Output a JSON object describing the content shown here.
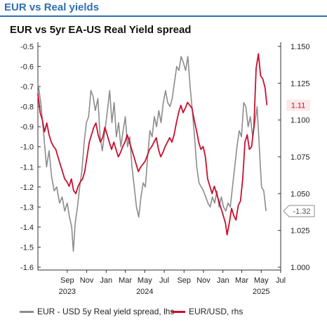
{
  "header": {
    "title": "EUR vs Real yields"
  },
  "chart_data": {
    "type": "line",
    "title": "EUR vs 5yr EA-US Real Yield spread",
    "x_range": [
      "2023-06",
      "2025-07"
    ],
    "x_ticks": [
      {
        "label": "Sep",
        "date": "2023-09"
      },
      {
        "label": "Nov",
        "date": "2023-11"
      },
      {
        "label": "Jan",
        "date": "2024-01"
      },
      {
        "label": "Mar",
        "date": "2024-03"
      },
      {
        "label": "May",
        "date": "2024-05"
      },
      {
        "label": "Jul",
        "date": "2024-07"
      },
      {
        "label": "Sep",
        "date": "2024-09"
      },
      {
        "label": "Nov",
        "date": "2024-11"
      },
      {
        "label": "Jan",
        "date": "2025-01"
      },
      {
        "label": "Mar",
        "date": "2025-03"
      },
      {
        "label": "May",
        "date": "2025-05"
      },
      {
        "label": "Jul",
        "date": "2025-07"
      }
    ],
    "year_labels": [
      {
        "label": "2023",
        "date": "2023-09"
      },
      {
        "label": "2024",
        "date": "2024-05"
      },
      {
        "label": "2025",
        "date": "2025-05"
      }
    ],
    "y_left": {
      "min": -1.6,
      "max": -0.5,
      "ticks": [
        "-0.5",
        "-0.6",
        "-0.7",
        "-0.8",
        "-0.9",
        "-1.0",
        "-1.1",
        "-1.2",
        "-1.3",
        "-1.4",
        "-1.5",
        "-1.6"
      ]
    },
    "y_right": {
      "min": 1.0,
      "max": 1.15,
      "ticks": [
        "1.150",
        "1.125",
        "1.100",
        "1.075",
        "1.050",
        "1.025",
        "1.000"
      ]
    },
    "series": [
      {
        "name": "EUR - USD 5y Real yield spread, lhs",
        "axis": "left",
        "color": "#8c8c8c",
        "points": [
          [
            "2023-06-01",
            -0.68
          ],
          [
            "2023-06-10",
            -0.78
          ],
          [
            "2023-06-20",
            -0.95
          ],
          [
            "2023-06-28",
            -1.1
          ],
          [
            "2023-07-06",
            -1.02
          ],
          [
            "2023-07-14",
            -1.15
          ],
          [
            "2023-07-22",
            -1.22
          ],
          [
            "2023-07-30",
            -1.2
          ],
          [
            "2023-08-08",
            -1.28
          ],
          [
            "2023-08-16",
            -1.25
          ],
          [
            "2023-08-24",
            -1.32
          ],
          [
            "2023-09-01",
            -1.28
          ],
          [
            "2023-09-08",
            -1.35
          ],
          [
            "2023-09-15",
            -1.4
          ],
          [
            "2023-09-20",
            -1.52
          ],
          [
            "2023-09-26",
            -1.38
          ],
          [
            "2023-10-03",
            -1.3
          ],
          [
            "2023-10-10",
            -1.2
          ],
          [
            "2023-10-17",
            -1.12
          ],
          [
            "2023-10-24",
            -0.98
          ],
          [
            "2023-10-31",
            -0.88
          ],
          [
            "2023-11-07",
            -0.85
          ],
          [
            "2023-11-14",
            -0.72
          ],
          [
            "2023-11-21",
            -0.75
          ],
          [
            "2023-11-28",
            -0.82
          ],
          [
            "2023-12-06",
            -0.76
          ],
          [
            "2023-12-13",
            -0.95
          ],
          [
            "2023-12-20",
            -1.02
          ],
          [
            "2023-12-28",
            -0.92
          ],
          [
            "2024-01-05",
            -0.82
          ],
          [
            "2024-01-12",
            -0.72
          ],
          [
            "2024-01-19",
            -0.88
          ],
          [
            "2024-01-26",
            -0.78
          ],
          [
            "2024-02-02",
            -0.95
          ],
          [
            "2024-02-09",
            -0.88
          ],
          [
            "2024-02-16",
            -1.0
          ],
          [
            "2024-02-23",
            -0.92
          ],
          [
            "2024-03-01",
            -0.85
          ],
          [
            "2024-03-08",
            -1.0
          ],
          [
            "2024-03-15",
            -0.95
          ],
          [
            "2024-03-22",
            -1.1
          ],
          [
            "2024-03-29",
            -1.2
          ],
          [
            "2024-04-05",
            -1.3
          ],
          [
            "2024-04-12",
            -1.35
          ],
          [
            "2024-04-19",
            -1.25
          ],
          [
            "2024-04-26",
            -1.18
          ],
          [
            "2024-05-03",
            -1.2
          ],
          [
            "2024-05-10",
            -1.05
          ],
          [
            "2024-05-17",
            -0.92
          ],
          [
            "2024-05-24",
            -0.95
          ],
          [
            "2024-05-31",
            -0.85
          ],
          [
            "2024-06-07",
            -0.9
          ],
          [
            "2024-06-14",
            -0.82
          ],
          [
            "2024-06-21",
            -0.88
          ],
          [
            "2024-06-28",
            -0.78
          ],
          [
            "2024-07-05",
            -0.72
          ],
          [
            "2024-07-12",
            -0.78
          ],
          [
            "2024-07-19",
            -0.8
          ],
          [
            "2024-07-26",
            -0.76
          ],
          [
            "2024-08-02",
            -0.68
          ],
          [
            "2024-08-09",
            -0.6
          ],
          [
            "2024-08-16",
            -0.62
          ],
          [
            "2024-08-23",
            -0.55
          ],
          [
            "2024-08-30",
            -0.58
          ],
          [
            "2024-09-06",
            -0.62
          ],
          [
            "2024-09-13",
            -0.55
          ],
          [
            "2024-09-20",
            -0.7
          ],
          [
            "2024-09-27",
            -0.82
          ],
          [
            "2024-10-04",
            -0.95
          ],
          [
            "2024-10-11",
            -1.1
          ],
          [
            "2024-10-18",
            -1.18
          ],
          [
            "2024-10-25",
            -1.2
          ],
          [
            "2024-11-01",
            -1.22
          ],
          [
            "2024-11-08",
            -1.25
          ],
          [
            "2024-11-15",
            -1.28
          ],
          [
            "2024-11-22",
            -1.3
          ],
          [
            "2024-11-29",
            -1.25
          ],
          [
            "2024-12-06",
            -1.28
          ],
          [
            "2024-12-13",
            -1.22
          ],
          [
            "2024-12-20",
            -1.3
          ],
          [
            "2024-12-27",
            -1.25
          ],
          [
            "2025-01-03",
            -1.3
          ],
          [
            "2025-01-10",
            -1.32
          ],
          [
            "2025-01-17",
            -1.28
          ],
          [
            "2025-01-24",
            -1.3
          ],
          [
            "2025-01-31",
            -1.2
          ],
          [
            "2025-02-07",
            -1.1
          ],
          [
            "2025-02-14",
            -1.0
          ],
          [
            "2025-02-21",
            -0.92
          ],
          [
            "2025-02-28",
            -0.95
          ],
          [
            "2025-03-07",
            -0.78
          ],
          [
            "2025-03-14",
            -0.8
          ],
          [
            "2025-03-21",
            -0.9
          ],
          [
            "2025-03-28",
            -0.85
          ],
          [
            "2025-04-04",
            -0.95
          ],
          [
            "2025-04-11",
            -0.88
          ],
          [
            "2025-04-18",
            -0.8
          ],
          [
            "2025-04-25",
            -1.0
          ],
          [
            "2025-05-02",
            -1.2
          ],
          [
            "2025-05-09",
            -1.22
          ],
          [
            "2025-05-16",
            -1.32
          ]
        ]
      },
      {
        "name": "EUR/USD, rhs",
        "axis": "right",
        "color": "#c8102e",
        "points": [
          [
            "2023-06-01",
            1.118
          ],
          [
            "2023-06-08",
            1.105
          ],
          [
            "2023-06-15",
            1.1
          ],
          [
            "2023-06-22",
            1.092
          ],
          [
            "2023-06-29",
            1.098
          ],
          [
            "2023-07-06",
            1.09
          ],
          [
            "2023-07-13",
            1.085
          ],
          [
            "2023-07-20",
            1.082
          ],
          [
            "2023-07-27",
            1.08
          ],
          [
            "2023-08-03",
            1.075
          ],
          [
            "2023-08-10",
            1.07
          ],
          [
            "2023-08-17",
            1.065
          ],
          [
            "2023-08-24",
            1.06
          ],
          [
            "2023-08-31",
            1.058
          ],
          [
            "2023-09-07",
            1.055
          ],
          [
            "2023-09-14",
            1.06
          ],
          [
            "2023-09-21",
            1.052
          ],
          [
            "2023-09-28",
            1.05
          ],
          [
            "2023-10-05",
            1.055
          ],
          [
            "2023-10-12",
            1.058
          ],
          [
            "2023-10-19",
            1.06
          ],
          [
            "2023-10-26",
            1.065
          ],
          [
            "2023-11-02",
            1.075
          ],
          [
            "2023-11-09",
            1.085
          ],
          [
            "2023-11-16",
            1.09
          ],
          [
            "2023-11-23",
            1.095
          ],
          [
            "2023-11-30",
            1.098
          ],
          [
            "2023-12-07",
            1.09
          ],
          [
            "2023-12-14",
            1.085
          ],
          [
            "2023-12-21",
            1.088
          ],
          [
            "2023-12-28",
            1.095
          ],
          [
            "2024-01-04",
            1.09
          ],
          [
            "2024-01-11",
            1.085
          ],
          [
            "2024-01-18",
            1.08
          ],
          [
            "2024-01-25",
            1.085
          ],
          [
            "2024-02-01",
            1.08
          ],
          [
            "2024-02-08",
            1.075
          ],
          [
            "2024-02-15",
            1.078
          ],
          [
            "2024-02-22",
            1.082
          ],
          [
            "2024-02-29",
            1.085
          ],
          [
            "2024-03-07",
            1.09
          ],
          [
            "2024-03-14",
            1.085
          ],
          [
            "2024-03-21",
            1.08
          ],
          [
            "2024-03-28",
            1.075
          ],
          [
            "2024-04-04",
            1.07
          ],
          [
            "2024-04-11",
            1.065
          ],
          [
            "2024-04-18",
            1.068
          ],
          [
            "2024-04-25",
            1.07
          ],
          [
            "2024-05-02",
            1.072
          ],
          [
            "2024-05-09",
            1.076
          ],
          [
            "2024-05-16",
            1.08
          ],
          [
            "2024-05-23",
            1.082
          ],
          [
            "2024-05-30",
            1.085
          ],
          [
            "2024-06-06",
            1.088
          ],
          [
            "2024-06-13",
            1.08
          ],
          [
            "2024-06-20",
            1.075
          ],
          [
            "2024-06-27",
            1.078
          ],
          [
            "2024-07-04",
            1.082
          ],
          [
            "2024-07-11",
            1.085
          ],
          [
            "2024-07-18",
            1.088
          ],
          [
            "2024-07-25",
            1.085
          ],
          [
            "2024-08-01",
            1.09
          ],
          [
            "2024-08-08",
            1.098
          ],
          [
            "2024-08-15",
            1.105
          ],
          [
            "2024-08-22",
            1.11
          ],
          [
            "2024-08-29",
            1.105
          ],
          [
            "2024-09-05",
            1.108
          ],
          [
            "2024-09-12",
            1.112
          ],
          [
            "2024-09-19",
            1.11
          ],
          [
            "2024-09-26",
            1.108
          ],
          [
            "2024-10-03",
            1.1
          ],
          [
            "2024-10-10",
            1.093
          ],
          [
            "2024-10-17",
            1.085
          ],
          [
            "2024-10-24",
            1.08
          ],
          [
            "2024-10-31",
            1.082
          ],
          [
            "2024-11-07",
            1.075
          ],
          [
            "2024-11-14",
            1.06
          ],
          [
            "2024-11-21",
            1.055
          ],
          [
            "2024-11-28",
            1.05
          ],
          [
            "2024-12-05",
            1.055
          ],
          [
            "2024-12-12",
            1.05
          ],
          [
            "2024-12-19",
            1.045
          ],
          [
            "2024-12-26",
            1.04
          ],
          [
            "2025-01-02",
            1.035
          ],
          [
            "2025-01-09",
            1.03
          ],
          [
            "2025-01-14",
            1.022
          ],
          [
            "2025-01-21",
            1.03
          ],
          [
            "2025-01-28",
            1.04
          ],
          [
            "2025-02-04",
            1.035
          ],
          [
            "2025-02-11",
            1.032
          ],
          [
            "2025-02-18",
            1.042
          ],
          [
            "2025-02-25",
            1.045
          ],
          [
            "2025-03-04",
            1.06
          ],
          [
            "2025-03-11",
            1.085
          ],
          [
            "2025-03-18",
            1.09
          ],
          [
            "2025-03-25",
            1.08
          ],
          [
            "2025-04-01",
            1.082
          ],
          [
            "2025-04-08",
            1.095
          ],
          [
            "2025-04-15",
            1.135
          ],
          [
            "2025-04-22",
            1.145
          ],
          [
            "2025-04-29",
            1.13
          ],
          [
            "2025-05-06",
            1.128
          ],
          [
            "2025-05-13",
            1.122
          ],
          [
            "2025-05-19",
            1.11
          ]
        ]
      }
    ],
    "end_labels": [
      {
        "series": "EUR/USD, rhs",
        "text": "1.11"
      },
      {
        "series": "EUR - USD 5y Real yield spread, lhs",
        "text": "-1.32"
      }
    ],
    "legend_position": "bottom",
    "grid": false
  }
}
